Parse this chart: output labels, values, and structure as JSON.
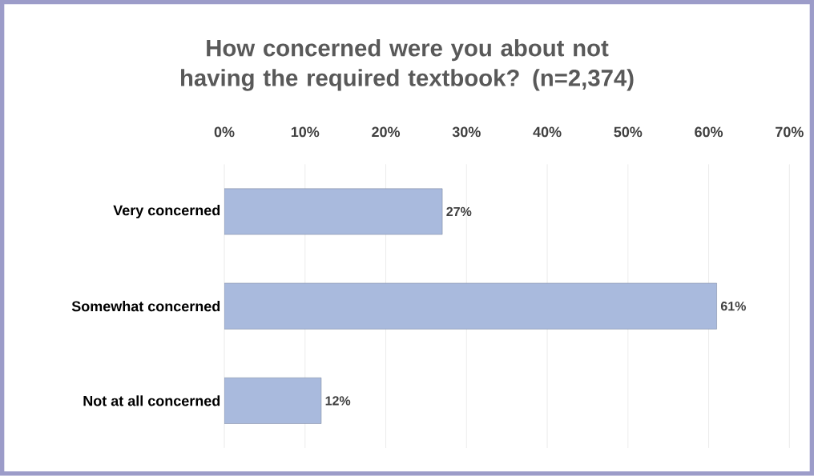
{
  "chart_data": {
    "type": "bar",
    "orientation": "horizontal",
    "title": "How concerned were you about not having the required textbook? (n=2,374)",
    "categories": [
      "Very concerned",
      "Somewhat concerned",
      "Not at all concerned"
    ],
    "values": [
      27,
      61,
      12
    ],
    "color": "#a9badd",
    "value_labels": [
      "27%",
      "61%",
      "12%"
    ],
    "xlim": [
      0,
      70
    ],
    "xticks": [
      {
        "value": 0,
        "label": "0%"
      },
      {
        "value": 10,
        "label": "10%"
      },
      {
        "value": 20,
        "label": "20%"
      },
      {
        "value": 30,
        "label": "30%"
      },
      {
        "value": 40,
        "label": "40%"
      },
      {
        "value": 50,
        "label": "50%"
      },
      {
        "value": 60,
        "label": "60%"
      },
      {
        "value": 70,
        "label": "70%"
      }
    ],
    "grid": "x"
  }
}
